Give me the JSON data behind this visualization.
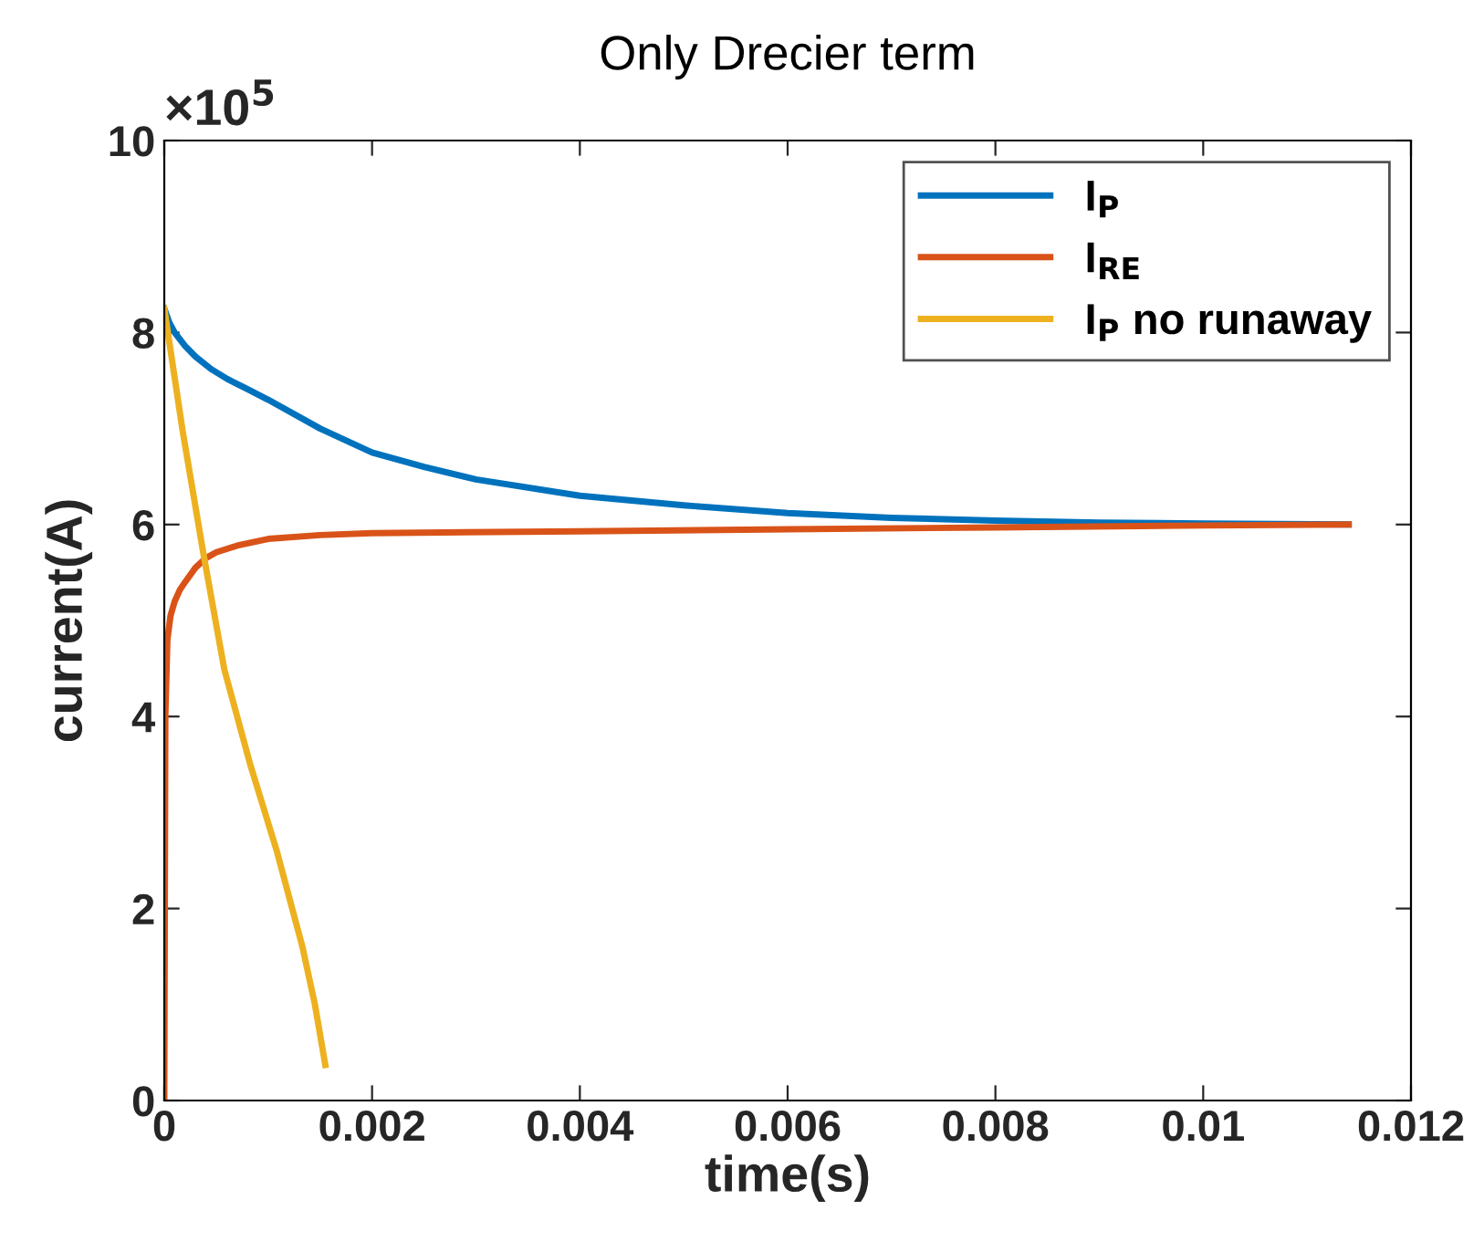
{
  "chart_data": {
    "type": "line",
    "title": "Only Drecier term",
    "xlabel": "time(s)",
    "ylabel": "current(A)",
    "annotations": [
      "×10$^{5}$"
    ],
    "xlim": [
      0,
      0.012
    ],
    "xticks": [
      0,
      0.002,
      0.004,
      0.006,
      0.008,
      0.01,
      0.012
    ],
    "ylim": [
      0,
      10
    ],
    "yticks": [
      0,
      2,
      4,
      6,
      8,
      10
    ],
    "grid": false,
    "legend": "top right",
    "series": [
      {
        "name": "I$_{P}$",
        "color": "#0072bd",
        "x": [
          0,
          5e-05,
          0.0001,
          0.0002,
          0.0003,
          0.00045,
          0.0006,
          0.0008,
          0.001,
          0.0015,
          0.002,
          0.0025,
          0.003,
          0.004,
          0.005,
          0.006,
          0.007,
          0.008,
          0.009,
          0.01,
          0.0114
        ],
        "values": [
          8.25,
          8.1,
          8.0,
          7.86,
          7.75,
          7.62,
          7.52,
          7.41,
          7.3,
          7.0,
          6.75,
          6.6,
          6.47,
          6.3,
          6.2,
          6.12,
          6.07,
          6.04,
          6.02,
          6.01,
          6.0
        ]
      },
      {
        "name": "I$_{RE}$",
        "color": "#d95319",
        "x": [
          0,
          1e-05,
          3e-05,
          6e-05,
          0.0001,
          0.00015,
          0.0002,
          0.0003,
          0.0004,
          0.0005,
          0.0007,
          0.001,
          0.0015,
          0.002,
          0.004,
          0.006,
          0.008,
          0.01,
          0.0114
        ],
        "values": [
          0,
          4.0,
          4.8,
          5.05,
          5.2,
          5.32,
          5.4,
          5.55,
          5.65,
          5.71,
          5.78,
          5.85,
          5.89,
          5.91,
          5.93,
          5.95,
          5.97,
          5.99,
          6.0
        ]
      },
      {
        "name": "I$_{P}$ no runaway",
        "color": "#edb120",
        "x": [
          0,
          0.000176,
          0.000376,
          0.000578,
          0.00083,
          0.00108,
          0.00133,
          0.00145,
          0.00155
        ],
        "values": [
          8.25,
          6.98,
          5.7,
          4.49,
          3.49,
          2.61,
          1.6,
          1.0,
          0.37
        ]
      }
    ]
  }
}
